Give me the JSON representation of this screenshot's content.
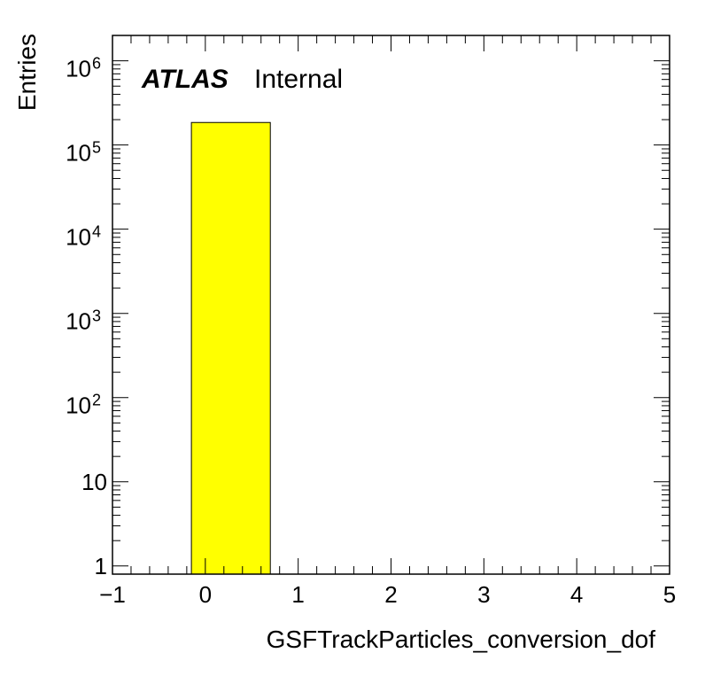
{
  "chart_data": {
    "type": "bar",
    "title": "",
    "xlabel": "GSFTrackParticles_conversion_dof",
    "ylabel": "Entries",
    "xlim": [
      -1,
      5
    ],
    "ylim": [
      0.8,
      2000000
    ],
    "y_scale": "log",
    "x_ticks": [
      {
        "value": -1,
        "label": "−1"
      },
      {
        "value": 0,
        "label": "0"
      },
      {
        "value": 1,
        "label": "1"
      },
      {
        "value": 2,
        "label": "2"
      },
      {
        "value": 3,
        "label": "3"
      },
      {
        "value": 4,
        "label": "4"
      },
      {
        "value": 5,
        "label": "5"
      }
    ],
    "y_ticks": [
      {
        "value": 1,
        "base": "1",
        "exp": ""
      },
      {
        "value": 10,
        "base": "10",
        "exp": ""
      },
      {
        "value": 100,
        "base": "10",
        "exp": "2"
      },
      {
        "value": 1000,
        "base": "10",
        "exp": "3"
      },
      {
        "value": 10000,
        "base": "10",
        "exp": "4"
      },
      {
        "value": 100000,
        "base": "10",
        "exp": "5"
      },
      {
        "value": 1000000,
        "base": "10",
        "exp": "6"
      }
    ],
    "bins": [
      {
        "low": -0.15,
        "high": 0.7,
        "value": 185000
      }
    ],
    "bar_color": "#ffff00",
    "bar_edge_color": "#000000",
    "grid": false,
    "legend": "none",
    "annotation": {
      "bold": "ATLAS",
      "text": "Internal",
      "placement": "top-left"
    }
  }
}
